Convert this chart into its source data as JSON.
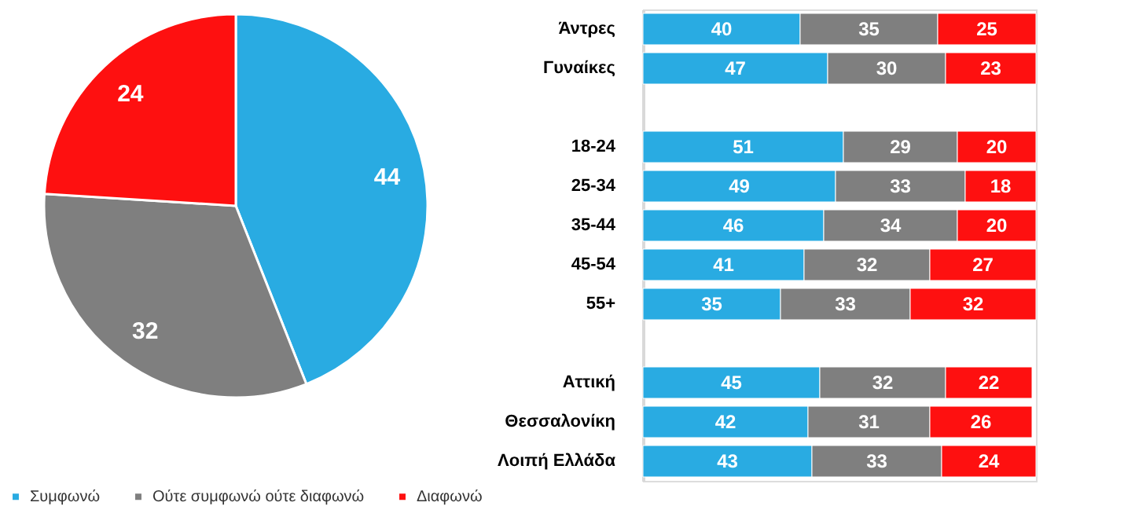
{
  "chart_data": [
    {
      "type": "pie",
      "categories": [
        "Συμφωνώ",
        "Ούτε συμφωνώ ούτε διαφωνώ",
        "Διαφωνώ"
      ],
      "values": [
        44,
        32,
        24
      ],
      "colors": [
        "#29abe2",
        "#7f7f7f",
        "#fe1010"
      ],
      "data_labels": true,
      "legend": "bottom"
    },
    {
      "type": "bar",
      "orientation": "horizontal",
      "stacked": true,
      "data_labels": true,
      "categories": [
        "Άντρες",
        "Γυναίκες",
        null,
        "18-24",
        "25-34",
        "35-44",
        "45-54",
        "55+",
        null,
        "Αττική",
        "Θεσσαλονίκη",
        "Λοιπή Ελλάδα"
      ],
      "series": [
        {
          "color": "#29abe2",
          "values": [
            40,
            47,
            null,
            51,
            49,
            46,
            41,
            35,
            null,
            45,
            42,
            43
          ]
        },
        {
          "color": "#7f7f7f",
          "values": [
            35,
            30,
            null,
            29,
            33,
            34,
            32,
            33,
            null,
            32,
            31,
            33
          ]
        },
        {
          "color": "#fe1010",
          "values": [
            25,
            23,
            null,
            20,
            18,
            20,
            27,
            32,
            null,
            22,
            26,
            24
          ]
        }
      ]
    }
  ]
}
